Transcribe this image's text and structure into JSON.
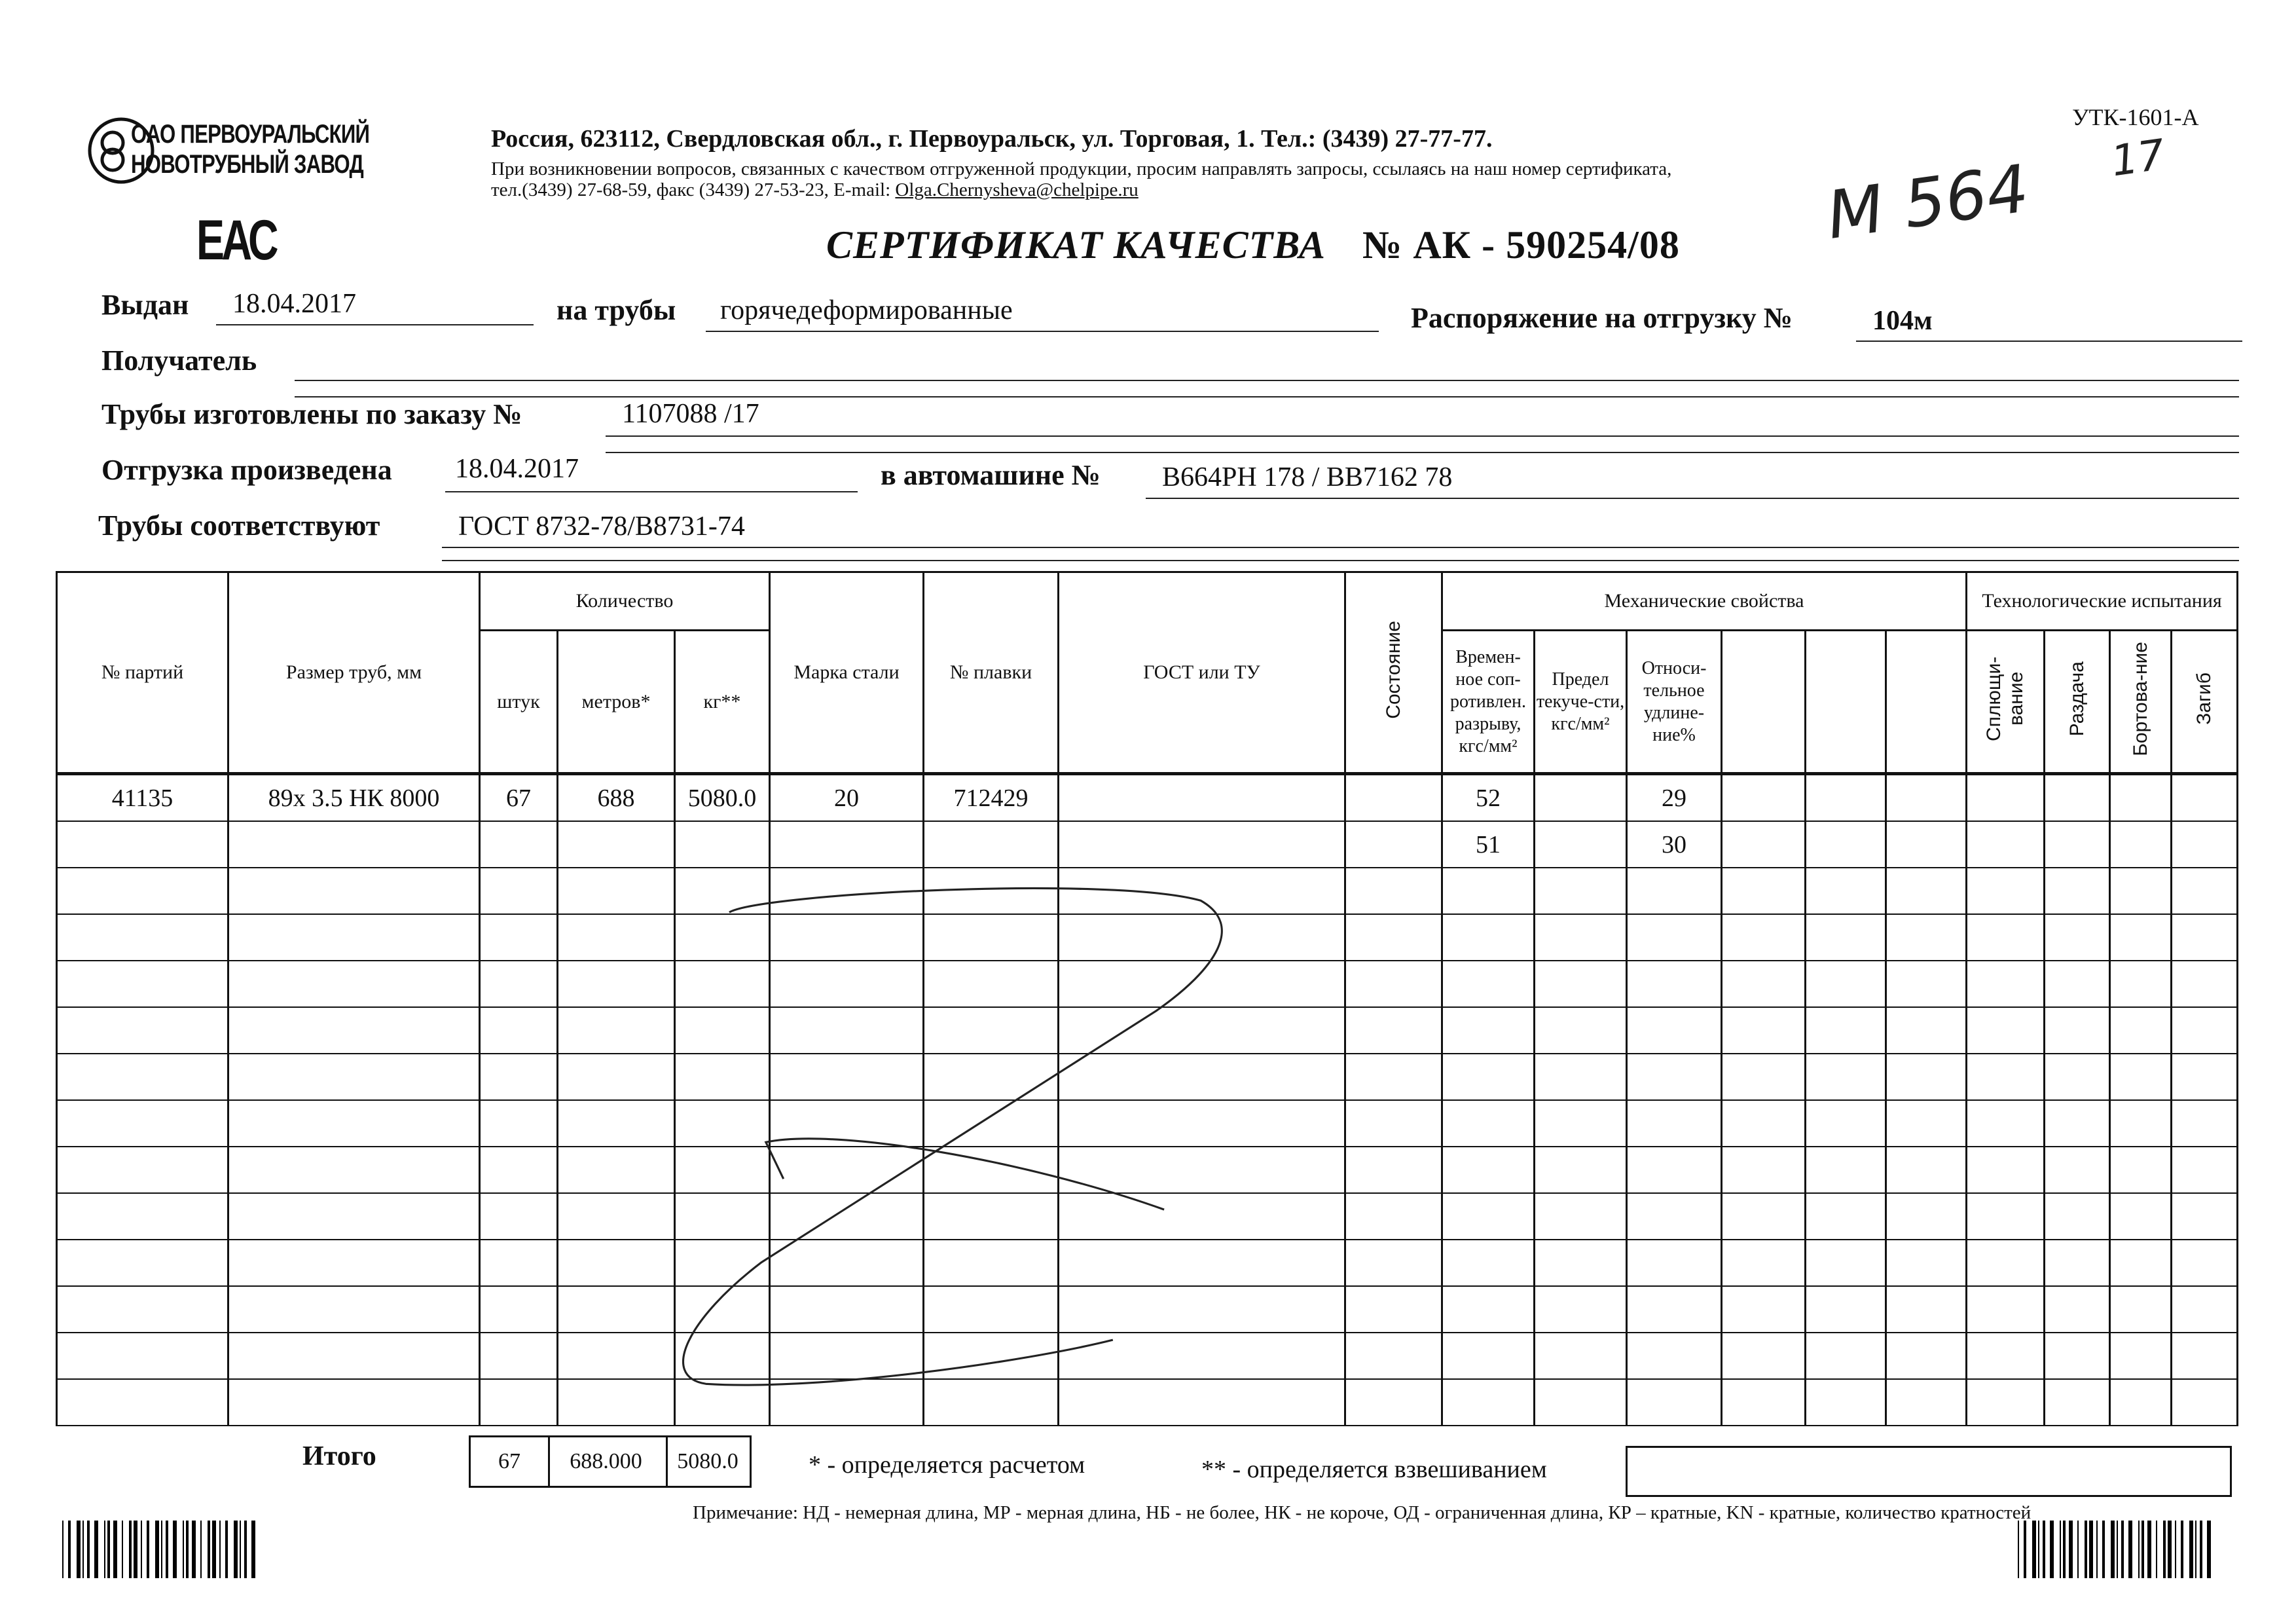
{
  "header": {
    "company_logo_lines": [
      "ОАО ПЕРВОУРАЛЬСКИЙ",
      "НОВОТРУБНЫЙ ЗАВОД"
    ],
    "address": "Россия, 623112, Свердловская обл., г. Первоуральск, ул. Торговая, 1. Тел.: (3439) 27-77-77.",
    "contact_note": "При возникновении вопросов, связанных с качеством отгруженной продукции, просим направлять запросы, ссылаясь на наш номер сертификата,",
    "contact_phones": "тел.(3439) 27-68-59, факс (3439) 27-53-23,  E-mail: ",
    "email": "Olga.Chernysheva@chelpipe.ru",
    "form_code": "УТК-1601-А",
    "eac_mark": "ЕАС",
    "title": "СЕРТИФИКАТ КАЧЕСТВА",
    "number_label": "№",
    "number": "АК -  590254/08",
    "handwritten_number": "М 564",
    "handwritten_suffix": "17"
  },
  "fields": {
    "issued_label": "Выдан",
    "issued_value": "18.04.2017",
    "pipes_label": "на трубы",
    "pipes_value": "горячедеформированные",
    "order_label": "Распоряжение на отгрузку №",
    "order_value": "104м",
    "recipient_label": "Получатель",
    "recipient_value": "",
    "made_label": "Трубы изготовлены по заказу №",
    "made_value": "1107088   /17",
    "shipped_label": "Отгрузка произведена",
    "shipped_value": "18.04.2017",
    "vehicle_label": "в автомашине №",
    "vehicle_value": "В664РН 178 / ВВ7162 78",
    "conform_label": "Трубы соответствуют",
    "conform_value": "ГОСТ 8732-78/В8731-74"
  },
  "table": {
    "headers": {
      "batch": "№ партий",
      "size": "Размер труб, мм",
      "quantity": "Количество",
      "pcs": "штук",
      "meters": "метров*",
      "kg": "кг**",
      "steel": "Марка стали",
      "heat": "№ плавки",
      "gost": "ГОСТ или ТУ",
      "state": "Состояние",
      "mech": "Механические свойства",
      "tensile": "Времен-ное соп-ротивлен. разрыву, кгс/мм²",
      "yield": "Предел текуче-сти, кгс/мм²",
      "elong": "Относи-тельное удлине-ние%",
      "tech": "Технологические испытания",
      "flatten": "Сплющи-вание",
      "expand": "Раздача",
      "flange": "Бортова-ние",
      "bend": "Загиб"
    },
    "rows": [
      [
        "41135",
        "89x 3.5 НК 8000",
        "67",
        "688",
        "5080.0",
        "20",
        "712429",
        "",
        "",
        "52",
        "",
        "29",
        "",
        "",
        "",
        "",
        "",
        "",
        ""
      ],
      [
        "",
        "",
        "",
        "",
        "",
        "",
        "",
        "",
        "",
        "51",
        "",
        "30",
        "",
        "",
        "",
        "",
        "",
        "",
        ""
      ]
    ],
    "empty_rows": 12
  },
  "totals": {
    "label": "Итого",
    "pcs": "67",
    "meters": "688.000",
    "kg": "5080.0",
    "note_calc": "* - определяется расчетом",
    "note_weigh": "** - определяется взвешиванием"
  },
  "footnote": "Примечание: НД - немерная длина, МР - мерная длина, НБ - не более, НК - не короче, ОД - ограниченная длина, КР – кратные, KN - кратные, количество кратностей"
}
